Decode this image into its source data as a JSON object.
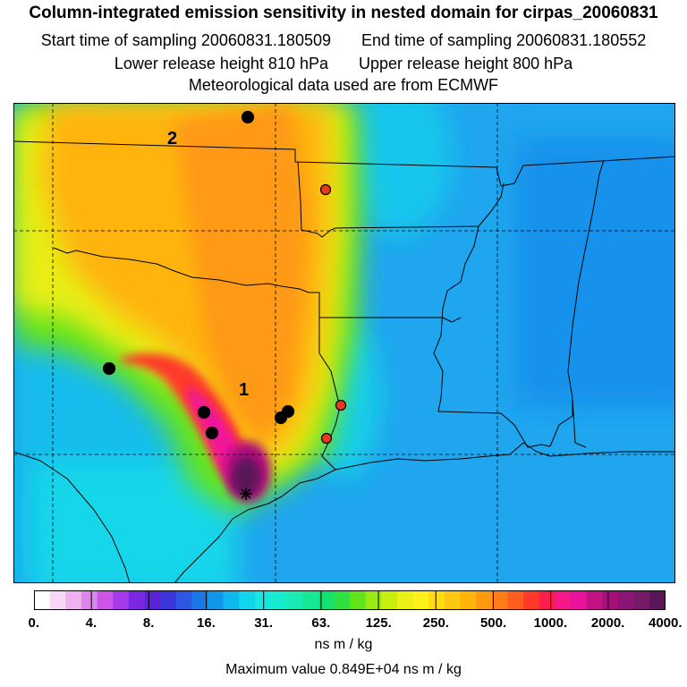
{
  "header": {
    "title": "Column-integrated emission sensitivity in nested domain for cirpas_20060831",
    "start_label": "Start time of sampling 20060831.180509",
    "end_label": "End time of sampling 20060831.180552",
    "lower_release": "Lower release height  810 hPa",
    "upper_release": "Upper release height  800 hPa",
    "met_data": "Meteorological data used are from ECMWF"
  },
  "map": {
    "labels": {
      "cluster_1": "1",
      "cluster_2": "2"
    },
    "markers": [
      {
        "name": "marker-black-north",
        "color": "#000000"
      },
      {
        "name": "marker-red-north",
        "color": "#e83a1e"
      },
      {
        "name": "marker-black-west",
        "color": "#000000"
      },
      {
        "name": "marker-black-1",
        "color": "#000000"
      },
      {
        "name": "marker-black-2",
        "color": "#000000"
      },
      {
        "name": "marker-black-3",
        "color": "#000000"
      },
      {
        "name": "marker-black-4",
        "color": "#000000"
      },
      {
        "name": "marker-red-east",
        "color": "#e83a1e"
      },
      {
        "name": "marker-red-south",
        "color": "#e83a1e"
      }
    ],
    "release_site_icon": "asterisk-star-icon"
  },
  "colorbar": {
    "tick_labels": [
      "0.",
      "4.",
      "8.",
      "16.",
      "31.",
      "63.",
      "125.",
      "250.",
      "500.",
      "1000.",
      "2000.",
      "4000."
    ],
    "colors": [
      "#ffffff",
      "#f6d8f6",
      "#eeb2ef",
      "#dd86ea",
      "#cc55e8",
      "#a53be8",
      "#7a28e0",
      "#5a23d5",
      "#3a35da",
      "#2a58e0",
      "#1a78e6",
      "#1196ea",
      "#0fb8ee",
      "#10d6ec",
      "#18e6e2",
      "#18ecd0",
      "#18ecb4",
      "#16e896",
      "#14e26e",
      "#30e040",
      "#62e41c",
      "#9aea14",
      "#c8ee12",
      "#ecf016",
      "#fff01a",
      "#ffdc14",
      "#ffc810",
      "#ffb40c",
      "#ff9a10",
      "#ff7c18",
      "#ff5c20",
      "#ff3a2a",
      "#fc1e4a",
      "#f61888",
      "#ea129e",
      "#c21284",
      "#a3107a",
      "#8c1474",
      "#741a66",
      "#5a1458"
    ],
    "units": "ns m / kg"
  },
  "footer": {
    "max_value": "Maximum value  0.849E+04 ns m / kg"
  }
}
